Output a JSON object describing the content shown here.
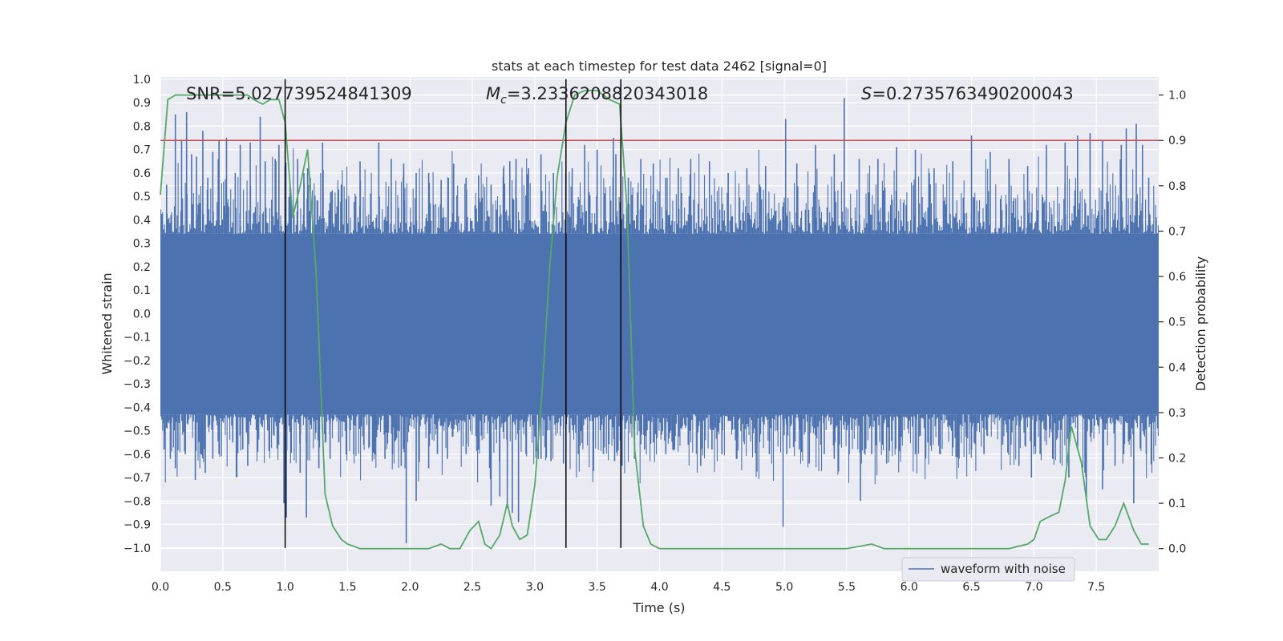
{
  "chart_data": {
    "type": "line",
    "title": "stats at each timestep for test data 2462 [signal=0]",
    "xlabel": "Time (s)",
    "ylabel": "Whitened strain",
    "ylabel_right": "Detection probability",
    "xlim": [
      0.0,
      8.0
    ],
    "ylim": [
      -1.1,
      1.01
    ],
    "ylim_right": [
      -0.05,
      1.04
    ],
    "x_ticks": [
      0.0,
      0.5,
      1.0,
      1.5,
      2.0,
      2.5,
      3.0,
      3.5,
      4.0,
      4.5,
      5.0,
      5.5,
      6.0,
      6.5,
      7.0,
      7.5
    ],
    "x_tick_labels": [
      "0.0",
      "0.5",
      "1.0",
      "1.5",
      "2.0",
      "2.5",
      "3.0",
      "3.5",
      "4.0",
      "4.5",
      "5.0",
      "5.5",
      "6.0",
      "6.5",
      "7.0",
      "7.5"
    ],
    "y_ticks": [
      1.0,
      0.9,
      0.8,
      0.7,
      0.6,
      0.5,
      0.4,
      0.3,
      0.2,
      0.1,
      0.0,
      -0.1,
      -0.2,
      -0.3,
      -0.4,
      -0.5,
      -0.6,
      -0.7,
      -0.8,
      -0.9,
      -1.0
    ],
    "y_tick_labels": [
      "1.0",
      "0.9",
      "0.8",
      "0.7",
      "0.6",
      "0.5",
      "0.4",
      "0.3",
      "0.2",
      "0.1",
      "0.0",
      "−0.1",
      "−0.2",
      "−0.3",
      "−0.4",
      "−0.5",
      "−0.6",
      "−0.7",
      "−0.8",
      "−0.9",
      "−1.0"
    ],
    "y_ticks_right": [
      1.0,
      0.9,
      0.8,
      0.7,
      0.6,
      0.5,
      0.4,
      0.3,
      0.2,
      0.1,
      0.0
    ],
    "y_tick_labels_right": [
      "1.0",
      "0.9",
      "0.8",
      "0.7",
      "0.6",
      "0.5",
      "0.4",
      "0.3",
      "0.2",
      "0.1",
      "0.0"
    ],
    "annotations": {
      "snr": "SNR=5.027739524841309",
      "mc_symbol": "M",
      "mc_sub": "c",
      "mc_value": "=3.2336208820343018",
      "s_symbol": "S",
      "s_value": "=0.2735763490200043"
    },
    "threshold_right": 0.9,
    "vertical_lines_x": [
      1.0,
      3.25,
      3.69
    ],
    "legend": {
      "label": "waveform with noise",
      "placement": "lower-right"
    },
    "waveform": {
      "name": "waveform with noise",
      "color": "#4c72b0",
      "core_upper": 0.34,
      "core_lower": -0.43,
      "peaks_x": [
        0.05,
        0.12,
        0.17,
        0.21,
        0.25,
        0.29,
        0.34,
        0.38,
        0.42,
        0.47,
        0.53,
        0.6,
        0.64,
        0.72,
        0.8,
        0.84,
        0.92,
        0.95,
        1.0,
        1.1,
        1.15,
        1.18,
        1.3,
        1.45,
        1.6,
        1.75,
        1.85,
        1.95,
        2.05,
        2.15,
        2.25,
        2.35,
        2.45,
        2.55,
        2.65,
        2.75,
        2.8,
        2.85,
        2.95,
        3.05,
        3.15,
        3.3,
        3.4,
        3.5,
        3.63,
        3.65,
        3.75,
        3.85,
        3.95,
        4.05,
        4.15,
        4.25,
        4.4,
        4.55,
        4.7,
        4.85,
        5.01,
        5.1,
        5.25,
        5.4,
        5.48,
        5.6,
        5.75,
        5.9,
        6.05,
        6.2,
        6.35,
        6.5,
        6.65,
        6.8,
        6.95,
        7.1,
        7.25,
        7.35,
        7.45,
        7.55,
        7.7,
        7.74,
        7.82,
        7.87,
        7.92
      ],
      "peaks_y": [
        0.55,
        0.85,
        0.74,
        0.86,
        0.68,
        0.67,
        0.78,
        0.58,
        0.69,
        0.74,
        0.75,
        0.6,
        0.72,
        0.73,
        0.84,
        0.65,
        0.66,
        0.72,
        0.63,
        0.66,
        0.6,
        0.62,
        0.73,
        0.55,
        0.65,
        0.73,
        0.66,
        0.64,
        0.6,
        0.6,
        0.57,
        0.64,
        0.58,
        0.59,
        0.55,
        0.62,
        0.65,
        0.66,
        0.62,
        0.68,
        0.6,
        0.62,
        0.72,
        0.7,
        0.75,
        0.68,
        0.58,
        0.66,
        0.64,
        0.58,
        0.62,
        0.66,
        0.65,
        0.6,
        0.62,
        0.63,
        0.83,
        0.64,
        0.72,
        0.68,
        0.92,
        0.66,
        0.66,
        0.71,
        0.7,
        0.62,
        0.65,
        0.76,
        0.69,
        0.66,
        0.63,
        0.72,
        0.73,
        0.76,
        0.77,
        0.74,
        0.72,
        0.79,
        0.81,
        0.72,
        0.58
      ],
      "troughs_x": [
        0.03,
        0.08,
        0.12,
        0.2,
        0.28,
        0.36,
        0.42,
        0.47,
        0.58,
        0.66,
        0.7,
        0.78,
        0.86,
        0.94,
        0.99,
        1.01,
        1.12,
        1.17,
        1.27,
        1.36,
        1.43,
        1.55,
        1.63,
        1.72,
        1.8,
        1.86,
        1.93,
        1.97,
        2.05,
        2.15,
        2.22,
        2.3,
        2.45,
        2.55,
        2.65,
        2.72,
        2.78,
        2.82,
        2.87,
        2.93,
        3.05,
        3.13,
        3.23,
        3.35,
        3.47,
        3.55,
        3.64,
        3.7,
        3.8,
        3.88,
        3.95,
        4.05,
        4.12,
        4.23,
        4.33,
        4.42,
        4.5,
        4.62,
        4.78,
        4.88,
        4.99,
        5.02,
        5.12,
        5.2,
        5.32,
        5.4,
        5.52,
        5.61,
        5.7,
        5.82,
        5.92,
        6.05,
        6.15,
        6.25,
        6.4,
        6.5,
        6.6,
        6.75,
        6.88,
        6.98,
        7.05,
        7.15,
        7.28,
        7.35,
        7.42,
        7.55,
        7.65,
        7.72,
        7.8,
        7.9
      ],
      "troughs_y": [
        -0.58,
        -0.62,
        -0.66,
        -0.6,
        -0.71,
        -0.68,
        -0.62,
        -0.6,
        -0.55,
        -0.58,
        -0.65,
        -0.59,
        -0.5,
        -0.55,
        -0.81,
        -0.87,
        -0.68,
        -0.87,
        -0.66,
        -0.62,
        -0.55,
        -0.6,
        -0.56,
        -0.6,
        -0.62,
        -0.6,
        -0.65,
        -0.98,
        -0.8,
        -0.66,
        -0.6,
        -0.62,
        -0.6,
        -0.58,
        -0.82,
        -0.78,
        -0.83,
        -0.85,
        -0.89,
        -0.6,
        -0.62,
        -0.63,
        -0.64,
        -0.6,
        -0.55,
        -0.6,
        -0.63,
        -0.65,
        -0.62,
        -0.58,
        -0.55,
        -0.6,
        -0.58,
        -0.56,
        -0.65,
        -0.58,
        -0.6,
        -0.62,
        -0.55,
        -0.6,
        -0.91,
        -0.6,
        -0.58,
        -0.64,
        -0.6,
        -0.62,
        -0.6,
        -0.8,
        -0.6,
        -0.64,
        -0.58,
        -0.6,
        -0.55,
        -0.6,
        -0.62,
        -0.58,
        -0.6,
        -0.56,
        -0.65,
        -0.7,
        -0.6,
        -0.62,
        -0.7,
        -0.58,
        -0.8,
        -0.75,
        -0.65,
        -0.6,
        -0.81,
        -0.6
      ]
    },
    "detection_probability": {
      "name": "detection probability",
      "color": "#55a868",
      "x": [
        0.0,
        0.06,
        0.12,
        0.25,
        0.4,
        0.55,
        0.7,
        0.75,
        0.82,
        0.88,
        0.95,
        1.0,
        1.06,
        1.12,
        1.18,
        1.25,
        1.32,
        1.38,
        1.45,
        1.5,
        1.6,
        1.75,
        1.9,
        2.0,
        2.15,
        2.25,
        2.32,
        2.4,
        2.48,
        2.55,
        2.6,
        2.65,
        2.72,
        2.78,
        2.82,
        2.88,
        2.94,
        3.0,
        3.06,
        3.12,
        3.18,
        3.25,
        3.32,
        3.4,
        3.5,
        3.6,
        3.68,
        3.74,
        3.8,
        3.87,
        3.93,
        4.0,
        4.2,
        4.5,
        4.8,
        5.0,
        5.2,
        5.5,
        5.7,
        5.8,
        6.0,
        6.2,
        6.5,
        6.8,
        6.95,
        7.0,
        7.05,
        7.12,
        7.2,
        7.25,
        7.3,
        7.38,
        7.45,
        7.52,
        7.58,
        7.65,
        7.72,
        7.8,
        7.86,
        7.92
      ],
      "y": [
        0.78,
        0.99,
        1.0,
        1.0,
        1.0,
        1.0,
        1.0,
        0.99,
        0.98,
        0.99,
        0.99,
        0.94,
        0.73,
        0.8,
        0.88,
        0.6,
        0.12,
        0.05,
        0.02,
        0.01,
        0.0,
        0.0,
        0.0,
        0.0,
        0.0,
        0.01,
        0.0,
        0.0,
        0.04,
        0.06,
        0.01,
        0.0,
        0.03,
        0.1,
        0.05,
        0.02,
        0.03,
        0.14,
        0.35,
        0.62,
        0.82,
        0.94,
        1.0,
        1.01,
        1.01,
        0.99,
        0.98,
        0.75,
        0.22,
        0.05,
        0.01,
        0.0,
        0.0,
        0.0,
        0.0,
        0.0,
        0.0,
        0.0,
        0.01,
        0.0,
        0.0,
        0.0,
        0.0,
        0.0,
        0.01,
        0.02,
        0.06,
        0.07,
        0.08,
        0.15,
        0.27,
        0.19,
        0.05,
        0.02,
        0.02,
        0.05,
        0.1,
        0.04,
        0.01,
        0.01
      ]
    }
  }
}
